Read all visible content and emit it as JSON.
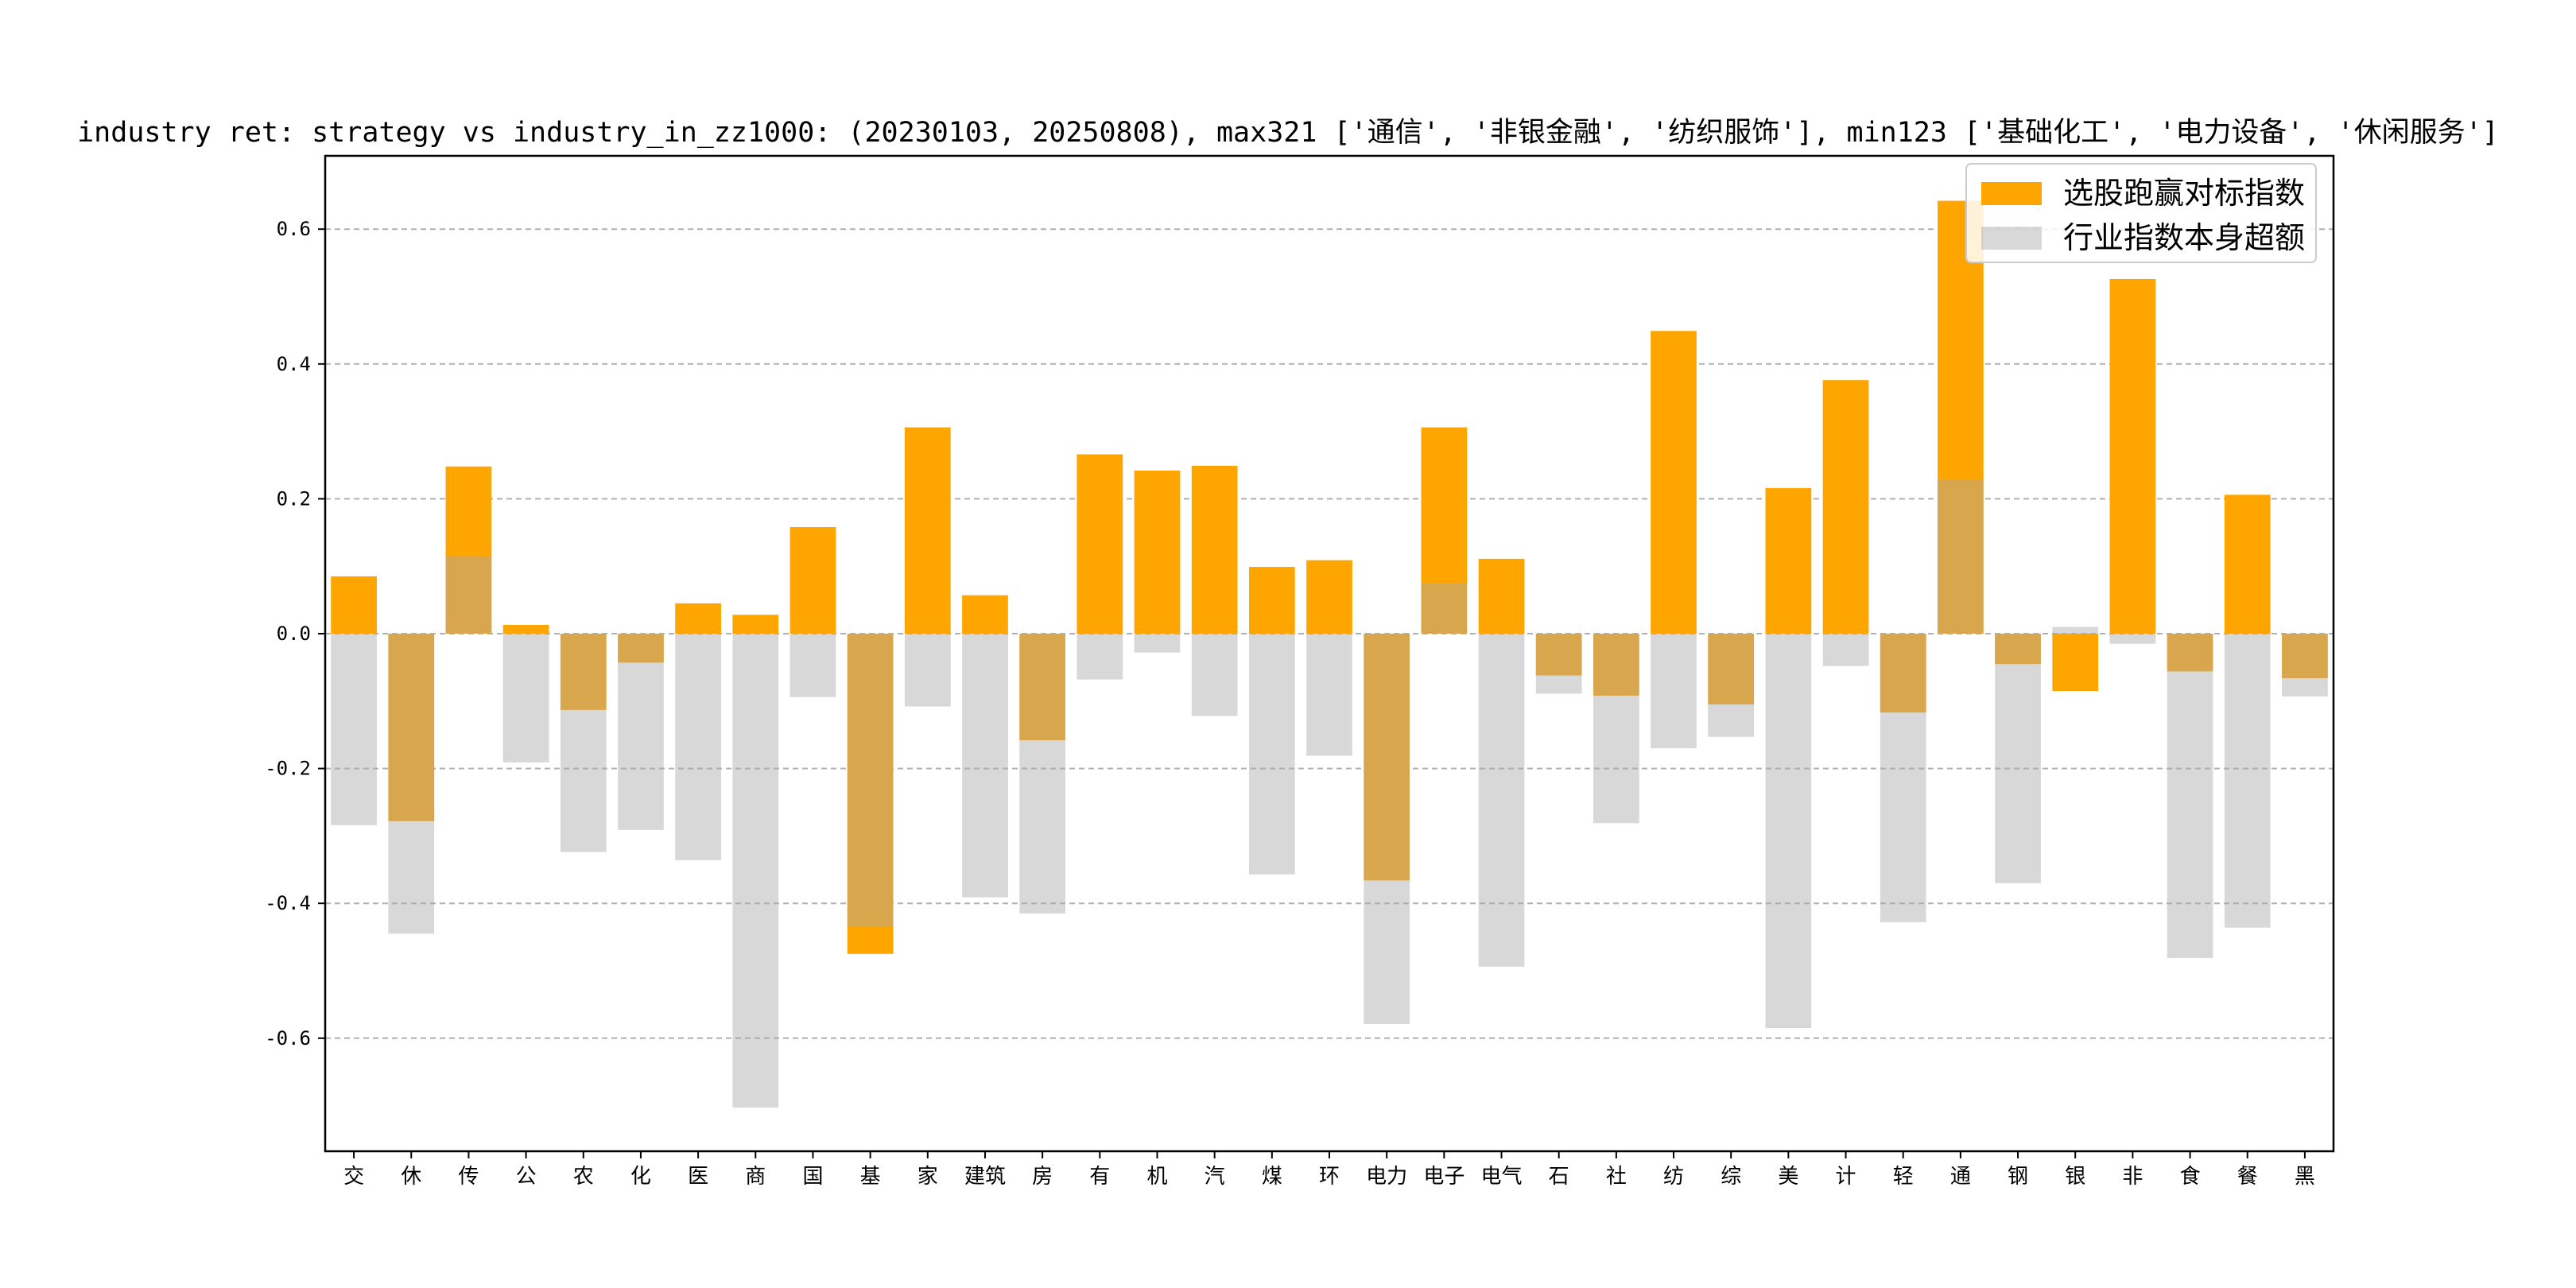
{
  "chart_data": {
    "type": "bar",
    "title": "industry ret: strategy vs industry_in_zz1000: (20230103, 20250808), max321 ['通信', '非银金融', '纺织服饰'], min123 ['基础化工', '电力设备', '休闲服务']",
    "xlabel": "",
    "ylabel": "",
    "ylim": [
      -0.77,
      0.72
    ],
    "yticks": [
      -0.6,
      -0.4,
      -0.2,
      0.0,
      0.2,
      0.4,
      0.6
    ],
    "ytick_labels": [
      "-0.6",
      "-0.4",
      "-0.2",
      "0.0",
      "0.2",
      "0.4",
      "0.6"
    ],
    "grid": "horizontal dashed",
    "legend_position": "top-right",
    "categories": [
      "交",
      "休",
      "传",
      "公",
      "农",
      "化",
      "医",
      "商",
      "国",
      "基",
      "家",
      "建筑",
      "房",
      "有",
      "机",
      "汽",
      "煤",
      "环",
      "电力",
      "电子",
      "电气",
      "石",
      "社",
      "纺",
      "综",
      "美",
      "计",
      "轻",
      "通",
      "钢",
      "银",
      "非",
      "食",
      "餐",
      "黑"
    ],
    "series": [
      {
        "name": "选股跑赢对标指数",
        "color": "#FFA500",
        "values": [
          0.085,
          -0.278,
          0.248,
          0.013,
          -0.113,
          -0.043,
          0.045,
          0.028,
          0.158,
          -0.475,
          0.306,
          0.057,
          -0.158,
          0.266,
          0.242,
          0.249,
          0.099,
          0.109,
          -0.366,
          0.306,
          0.111,
          -0.062,
          -0.092,
          0.449,
          -0.105,
          0.216,
          0.376,
          -0.117,
          0.642,
          -0.045,
          -0.085,
          0.526,
          -0.056,
          0.206,
          -0.066
        ]
      },
      {
        "name": "行业指数本身超额",
        "color": "#A9A9A9",
        "values": [
          -0.284,
          -0.445,
          0.115,
          -0.191,
          -0.324,
          -0.291,
          -0.336,
          -0.703,
          -0.094,
          -0.435,
          -0.108,
          -0.391,
          -0.415,
          -0.068,
          -0.028,
          -0.122,
          -0.357,
          -0.181,
          -0.579,
          0.075,
          -0.494,
          -0.089,
          -0.281,
          -0.17,
          -0.153,
          -0.585,
          -0.048,
          -0.428,
          0.229,
          -0.37,
          0.01,
          -0.015,
          -0.481,
          -0.436,
          -0.093
        ]
      }
    ]
  },
  "colors": {
    "strategy_bar": "#FFA500",
    "industry_bar": "#A9A9A9",
    "grid": "#B0B0B0",
    "axis": "#000000"
  }
}
